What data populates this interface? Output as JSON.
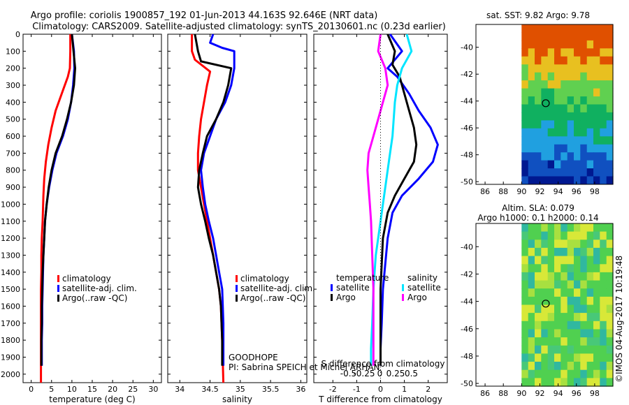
{
  "header": {
    "title_line1": "Argo profile: coriolis 1900857_192 01-Jun-2013 44.163S 92.646E (NRT data)",
    "title_line2": "Climatology: CARS2009. Satellite-adjusted climatology: synTS_20130601.nc (0.23d earlier)"
  },
  "colors": {
    "climatology": "#ff0000",
    "satellite": "#0000ff",
    "argo": "#000000",
    "salinity_satellite": "#00e5ff",
    "salinity_argo": "#ff00ff"
  },
  "labels": {
    "goodhope": "GOODHOPE",
    "pi": "PI: Sabrina SPEICH et Michel ARHAN",
    "timestamp": "©IMOS 04-Aug-2017 10:19:48"
  },
  "chart_data": [
    {
      "type": "line",
      "panel": "temperature",
      "xlabel": "temperature (deg C)",
      "xlim": [
        -2,
        32
      ],
      "xticks": [
        0,
        5,
        10,
        15,
        20,
        25,
        30
      ],
      "ylim": [
        2050,
        0
      ],
      "yticks": [
        0,
        100,
        200,
        300,
        400,
        500,
        600,
        700,
        800,
        900,
        1000,
        1100,
        1200,
        1300,
        1400,
        1500,
        1600,
        1700,
        1800,
        1900,
        2000
      ],
      "legend": [
        "climatology",
        "satellite-adj. clim.",
        "Argo(..raw -QC)"
      ],
      "series": [
        {
          "name": "climatology",
          "x": [
            9.6,
            9.6,
            9.5,
            9.0,
            7.5,
            6.0,
            5.0,
            4.2,
            3.6,
            3.2,
            3.0,
            2.8,
            2.6,
            2.5,
            2.5,
            2.4,
            2.4,
            2.4,
            2.4,
            2.4,
            2.4
          ],
          "y": [
            0,
            100,
            200,
            250,
            350,
            450,
            550,
            650,
            750,
            850,
            950,
            1100,
            1200,
            1300,
            1400,
            1500,
            1600,
            1700,
            1800,
            1900,
            2050
          ]
        },
        {
          "name": "satellite-adj. clim.",
          "x": [
            10.0,
            10.5,
            10.6,
            10.3,
            9.8,
            9.0,
            7.8,
            6.2,
            5.2,
            4.4,
            3.8,
            3.4,
            3.2,
            3.0,
            2.9,
            2.8,
            2.7,
            2.7,
            2.6,
            2.6
          ],
          "y": [
            0,
            100,
            200,
            300,
            400,
            500,
            600,
            700,
            800,
            900,
            1000,
            1100,
            1200,
            1300,
            1400,
            1500,
            1600,
            1700,
            1800,
            1950
          ]
        },
        {
          "name": "Argo(..raw -QC)",
          "x": [
            10.0,
            10.4,
            10.8,
            10.5,
            9.8,
            8.8,
            7.6,
            6.0,
            5.0,
            4.3,
            3.8,
            3.4,
            3.2,
            3.0,
            2.8,
            2.7,
            2.6,
            2.6,
            2.5,
            2.5
          ],
          "y": [
            0,
            100,
            200,
            300,
            400,
            500,
            600,
            700,
            800,
            900,
            1000,
            1100,
            1200,
            1300,
            1400,
            1500,
            1600,
            1700,
            1800,
            1950
          ]
        }
      ]
    },
    {
      "type": "line",
      "panel": "salinity",
      "xlabel": "salinity",
      "xlim": [
        33.8,
        36.1
      ],
      "xticks": [
        34,
        34.5,
        35,
        35.5,
        36
      ],
      "xtick_labels": [
        "34",
        "34.5",
        "35",
        "35.5",
        "36"
      ],
      "ylim": [
        2050,
        0
      ],
      "legend": [
        "climatology",
        "satellite-adj. clim.",
        "Argo(..raw -QC)"
      ],
      "series": [
        {
          "name": "climatology",
          "x": [
            34.2,
            34.2,
            34.25,
            34.5,
            34.45,
            34.4,
            34.35,
            34.32,
            34.3,
            34.3,
            34.35,
            34.4,
            34.45,
            34.5,
            34.55,
            34.6,
            34.65,
            34.68,
            34.7,
            34.72
          ],
          "y": [
            0,
            100,
            150,
            220,
            300,
            400,
            500,
            600,
            700,
            800,
            900,
            1000,
            1100,
            1200,
            1300,
            1400,
            1500,
            1600,
            1800,
            2050
          ]
        },
        {
          "name": "satellite-adj. clim.",
          "x": [
            34.55,
            34.5,
            34.7,
            34.9,
            34.9,
            34.85,
            34.75,
            34.6,
            34.5,
            34.4,
            34.35,
            34.38,
            34.42,
            34.48,
            34.55,
            34.6,
            34.65,
            34.7,
            34.72,
            34.72
          ],
          "y": [
            0,
            50,
            80,
            100,
            200,
            300,
            400,
            500,
            600,
            700,
            800,
            900,
            1000,
            1100,
            1200,
            1300,
            1400,
            1500,
            1700,
            1950
          ]
        },
        {
          "name": "Argo(..raw -QC)",
          "x": [
            34.25,
            34.3,
            34.35,
            34.85,
            34.8,
            34.72,
            34.6,
            34.45,
            34.38,
            34.32,
            34.3,
            34.35,
            34.42,
            34.48,
            34.55,
            34.6,
            34.65,
            34.68,
            34.7,
            34.7
          ],
          "y": [
            0,
            100,
            160,
            200,
            300,
            400,
            500,
            600,
            700,
            800,
            900,
            1000,
            1100,
            1200,
            1300,
            1400,
            1500,
            1600,
            1800,
            1950
          ]
        }
      ]
    },
    {
      "type": "line",
      "panel": "differences",
      "xlabel": "T difference from climatology",
      "xlabel_top": "S difference from climatology",
      "xlim": [
        -2.8,
        2.8
      ],
      "xticks": [
        -2,
        -1,
        0,
        1,
        2
      ],
      "xticks_top_labels": [
        "-0.5",
        "-0.25",
        "0",
        "0.25",
        "0.5"
      ],
      "ylim": [
        2050,
        0
      ],
      "legend_headers": [
        "temperature",
        "salinity"
      ],
      "legend": [
        "satellite",
        "Argo",
        "satellite",
        "Argo"
      ],
      "series": [
        {
          "name": "satellite",
          "group": "temperature",
          "x": [
            0.4,
            0.9,
            0.3,
            0.7,
            1.2,
            1.6,
            2.1,
            2.4,
            2.2,
            1.6,
            0.9,
            0.5,
            0.3,
            0.2,
            0.1,
            0.05,
            0.0,
            0.0
          ],
          "y": [
            0,
            100,
            200,
            250,
            350,
            450,
            550,
            650,
            750,
            850,
            950,
            1050,
            1200,
            1350,
            1500,
            1700,
            1850,
            1950
          ]
        },
        {
          "name": "Argo",
          "group": "temperature",
          "x": [
            0.3,
            0.6,
            0.5,
            0.8,
            1.0,
            1.2,
            1.4,
            1.5,
            1.4,
            1.0,
            0.6,
            0.3,
            0.1,
            0.05,
            0.0,
            0.0,
            0.0,
            0.0
          ],
          "y": [
            0,
            100,
            180,
            250,
            350,
            450,
            550,
            650,
            750,
            850,
            950,
            1050,
            1200,
            1350,
            1500,
            1700,
            1850,
            1950
          ]
        },
        {
          "name": "satellite",
          "group": "salinity",
          "x": [
            1.1,
            1.3,
            0.9,
            0.7,
            0.6,
            0.55,
            0.5,
            0.4,
            0.3,
            0.2,
            0.1,
            0.0,
            -0.2,
            -0.3,
            -0.35,
            -0.4,
            -0.4
          ],
          "y": [
            0,
            100,
            200,
            300,
            400,
            500,
            600,
            700,
            800,
            900,
            1000,
            1100,
            1300,
            1500,
            1700,
            1850,
            1950
          ]
        },
        {
          "name": "Argo",
          "group": "salinity",
          "x": [
            0.0,
            -0.1,
            0.2,
            0.3,
            0.1,
            -0.1,
            -0.3,
            -0.5,
            -0.55,
            -0.5,
            -0.45,
            -0.4,
            -0.35,
            -0.3,
            -0.3,
            -0.3,
            -0.3
          ],
          "y": [
            0,
            100,
            200,
            300,
            400,
            500,
            600,
            700,
            800,
            900,
            1000,
            1100,
            1300,
            1500,
            1700,
            1850,
            1950
          ]
        }
      ]
    },
    {
      "type": "heatmap",
      "panel": "sst_map",
      "title": "sat. SST: 9.82 Argo: 9.78",
      "xlim": [
        85,
        100
      ],
      "ylim": [
        -50.2,
        -38.3
      ],
      "xticks": [
        86,
        88,
        90,
        92,
        94,
        96,
        98
      ],
      "yticks": [
        -50,
        -48,
        -46,
        -44,
        -42,
        -40
      ],
      "data_extent_x": [
        90,
        100
      ],
      "marker": {
        "lon": 92.646,
        "lat": -44.163
      }
    },
    {
      "type": "heatmap",
      "panel": "sla_map",
      "title": "Altim. SLA: 0.079",
      "subtitle": "Argo h1000: 0.1 h2000: 0.14",
      "xlim": [
        85,
        100
      ],
      "ylim": [
        -50.2,
        -38.3
      ],
      "xticks": [
        86,
        88,
        90,
        92,
        94,
        96,
        98
      ],
      "yticks": [
        -50,
        -48,
        -46,
        -44,
        -42,
        -40
      ],
      "data_extent_x": [
        90,
        100
      ],
      "marker": {
        "lon": 92.646,
        "lat": -44.163
      }
    }
  ]
}
